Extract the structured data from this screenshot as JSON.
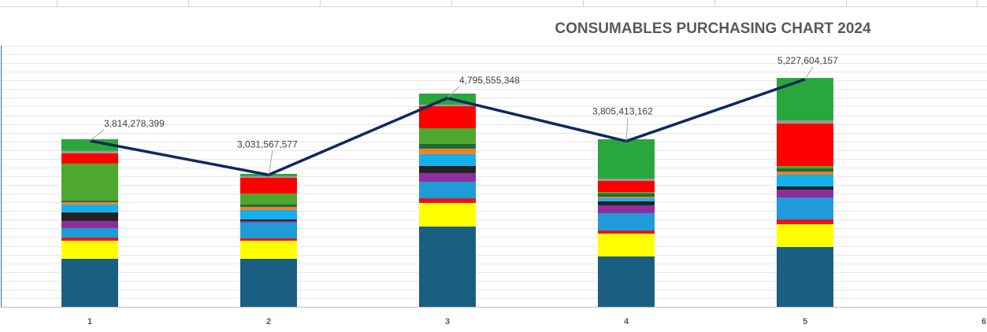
{
  "chart_data": {
    "type": "bar",
    "stacked": true,
    "title": "CONSUMABLES PURCHASING CHART 2024",
    "categories": [
      "1",
      "2",
      "3",
      "4",
      "5",
      "6"
    ],
    "series": [
      {
        "color": "#1a5f82",
        "values": [
          1103000000,
          1103000000,
          1844000000,
          1157000000,
          1374000000,
          null
        ]
      },
      {
        "color": "#ffff00",
        "values": [
          416000000,
          416000000,
          542000000,
          524000000,
          524000000,
          null
        ]
      },
      {
        "color": "#e8141a",
        "values": [
          72000000,
          54000000,
          108000000,
          72000000,
          108000000,
          null
        ]
      },
      {
        "color": "#1f9bd7",
        "values": [
          217000000,
          362000000,
          380000000,
          398000000,
          506000000,
          null
        ]
      },
      {
        "color": "#8e2e9e",
        "values": [
          163000000,
          36000000,
          199000000,
          181000000,
          181000000,
          null
        ]
      },
      {
        "color": "#222222",
        "values": [
          199000000,
          36000000,
          163000000,
          90000000,
          72000000,
          null
        ]
      },
      {
        "color": "#13b0ec",
        "values": [
          181000000,
          217000000,
          271000000,
          72000000,
          271000000,
          null
        ]
      },
      {
        "color": "#f07f2a",
        "values": [
          54000000,
          72000000,
          127000000,
          36000000,
          72000000,
          null
        ]
      },
      {
        "color": "#1e6b3a",
        "values": [
          36000000,
          54000000,
          108000000,
          72000000,
          72000000,
          null
        ]
      },
      {
        "color": "#4ea72e",
        "values": [
          850000000,
          253000000,
          362000000,
          36000000,
          54000000,
          null
        ]
      },
      {
        "color": "#ff0000",
        "values": [
          235000000,
          362000000,
          506000000,
          253000000,
          976000000,
          null
        ]
      },
      {
        "color": "#999999",
        "values": [
          54000000,
          36000000,
          36000000,
          54000000,
          72000000,
          null
        ]
      },
      {
        "color": "#2aa73c",
        "values": [
          271000000,
          54000000,
          253000000,
          904000000,
          976000000,
          null
        ]
      },
      {
        "type": "line",
        "color": "#0e2a5c",
        "values": [
          3814278399,
          3031567577,
          4795555348,
          3805413162,
          5227604157,
          null
        ],
        "value_labels": [
          "3,814,278,399",
          "3,031,567,577",
          "4,795,555,348",
          "3,805,413,162",
          "5,227,604,157",
          null
        ]
      }
    ],
    "ylim": [
      0,
      6000000000
    ],
    "yticks": [
      0,
      200000000,
      400000000,
      600000000,
      800000000,
      1000000000,
      1200000000,
      1400000000,
      1600000000,
      1800000000,
      2000000000,
      2200000000,
      2400000000,
      2600000000,
      2800000000,
      3000000000,
      3200000000,
      3400000000,
      3600000000,
      3800000000,
      4000000000,
      4200000000,
      4400000000,
      4600000000,
      4800000000,
      5000000000,
      5200000000,
      5400000000,
      5600000000,
      5800000000,
      6000000000
    ],
    "grid": true
  }
}
